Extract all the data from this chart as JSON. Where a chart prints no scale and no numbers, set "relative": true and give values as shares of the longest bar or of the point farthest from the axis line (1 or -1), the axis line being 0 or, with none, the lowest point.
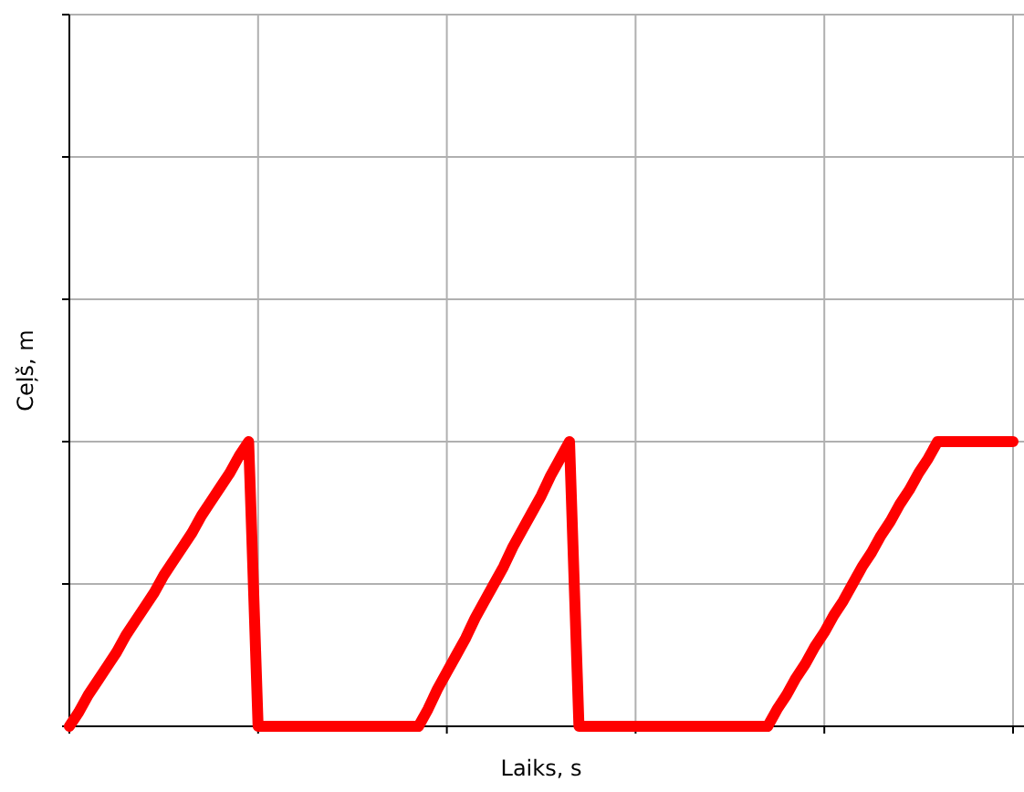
{
  "chart_data": {
    "type": "line",
    "xlabel": "Laiks, s",
    "ylabel": "Ceļš, m",
    "relative": true,
    "grid": true,
    "marker": "none",
    "line_style": "solid",
    "categories": [
      null,
      null,
      null,
      null,
      null,
      null,
      null,
      null,
      null,
      null,
      null,
      null,
      null,
      null,
      null,
      null,
      null,
      null,
      null,
      null,
      null,
      null,
      null,
      null,
      null,
      null,
      null,
      null,
      null,
      null,
      null,
      null,
      null,
      null,
      null,
      null,
      null,
      null,
      null,
      null,
      null,
      null,
      null,
      null,
      null,
      null,
      null,
      null,
      null,
      null,
      null,
      null,
      null,
      null,
      null,
      null,
      null,
      null,
      null,
      null,
      null,
      null,
      null,
      null,
      null,
      null,
      null,
      null,
      null,
      null,
      null,
      null,
      null,
      null,
      null,
      null,
      null,
      null,
      null,
      null,
      null,
      null,
      null,
      null,
      null,
      null,
      null,
      null,
      null,
      null,
      null,
      null,
      null,
      null,
      null,
      null,
      null,
      null,
      null,
      null,
      null
    ],
    "series": [
      {
        "color": "#ff0000",
        "values": [
          0,
          0.05,
          0.11,
          0.16,
          0.21,
          0.26,
          0.32,
          0.37,
          0.42,
          0.47,
          0.53,
          0.58,
          0.63,
          0.68,
          0.74,
          0.79,
          0.84,
          0.89,
          0.95,
          1,
          0,
          0,
          0,
          0,
          0,
          0,
          0,
          0,
          0,
          0,
          0,
          0,
          0,
          0,
          0,
          0,
          0,
          0,
          0.06,
          0.13,
          0.19,
          0.25,
          0.31,
          0.38,
          0.44,
          0.5,
          0.56,
          0.63,
          0.69,
          0.75,
          0.81,
          0.88,
          0.94,
          1,
          0,
          0,
          0,
          0,
          0,
          0,
          0,
          0,
          0,
          0,
          0,
          0,
          0,
          0,
          0,
          0,
          0,
          0,
          0,
          0,
          0,
          0.06,
          0.11,
          0.17,
          0.22,
          0.28,
          0.33,
          0.39,
          0.44,
          0.5,
          0.56,
          0.61,
          0.67,
          0.72,
          0.78,
          0.83,
          0.89,
          0.94,
          1,
          1,
          1,
          1,
          1,
          1,
          1,
          1,
          1
        ]
      }
    ]
  }
}
